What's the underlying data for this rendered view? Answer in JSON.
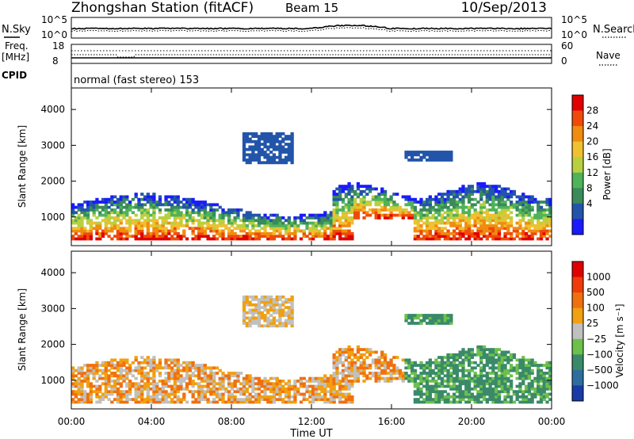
{
  "header": {
    "station": "Zhongshan Station (fitACF)",
    "beam": "Beam 15",
    "date": "10/Sep/2013"
  },
  "noise_panel": {
    "left_label": "N.Sky",
    "right_label": "N.Search",
    "left_ticks": [
      "10^5",
      "10^0"
    ],
    "right_ticks": [
      "10^5",
      "10^0"
    ]
  },
  "freq_panel": {
    "left_label_1": "Freq.",
    "left_label_2": "[MHz]",
    "right_label": "Nave",
    "left_ticks": [
      "18",
      "8"
    ],
    "right_ticks": [
      "60",
      "0"
    ],
    "cpid_label": "CPID",
    "cpid_text": "normal (fast stereo) 153"
  },
  "x_axis": {
    "label": "Time UT",
    "ticks": [
      "00:00",
      "04:00",
      "08:00",
      "12:00",
      "16:00",
      "20:00",
      "00:00"
    ]
  },
  "chart_data": [
    {
      "type": "heatmap",
      "name": "power",
      "ylabel": "Slant Range [km]",
      "xlabel": "",
      "yticks": [
        "1000",
        "2000",
        "3000",
        "4000"
      ],
      "ylim": [
        200,
        4600
      ],
      "xlim_hours": [
        0,
        24
      ],
      "colorbar_label": "Power [dB]",
      "colorbar_ticks": [
        "4",
        "8",
        "12",
        "16",
        "20",
        "24",
        "28"
      ],
      "colors": [
        "#1a1aff",
        "#2255aa",
        "#3a8a5a",
        "#4fb35a",
        "#b8d040",
        "#f0c030",
        "#f08c10",
        "#f04a0a",
        "#e00000"
      ]
    },
    {
      "type": "heatmap",
      "name": "velocity",
      "ylabel": "Slant Range [km]",
      "xlabel": "Time UT",
      "yticks": [
        "1000",
        "2000",
        "3000",
        "4000"
      ],
      "ylim": [
        200,
        4600
      ],
      "xlim_hours": [
        0,
        24
      ],
      "colorbar_label": "Velocity [m s⁻¹]",
      "colorbar_ticks": [
        "1000",
        "500",
        "100",
        "25",
        "−25",
        "−100",
        "−500",
        "−1000"
      ],
      "colors": [
        "#1a3aa8",
        "#2e6e9e",
        "#3a8a6a",
        "#6dc04a",
        "#c0c0c0",
        "#f0a010",
        "#f07010",
        "#f03a0a",
        "#e00000"
      ]
    }
  ]
}
